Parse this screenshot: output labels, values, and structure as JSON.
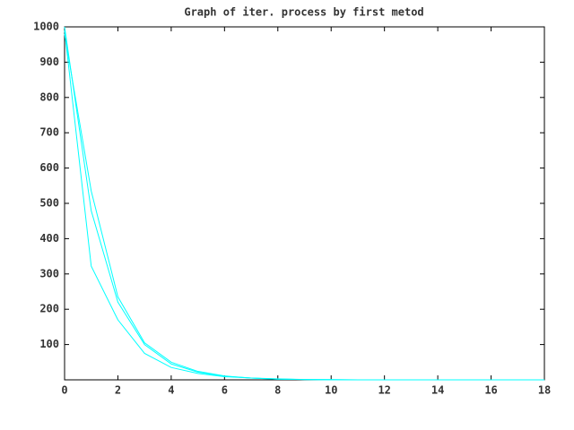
{
  "chart_data": {
    "type": "line",
    "title": "Graph of iter. process by first metod",
    "x": [
      0,
      1,
      2,
      3,
      4,
      5,
      6,
      7,
      8,
      9,
      10,
      11,
      12,
      13,
      14,
      15,
      16,
      17,
      18
    ],
    "series": [
      {
        "color": "#00ffff",
        "values": [
          990,
          322,
          170,
          75,
          35,
          18,
          9,
          5,
          3,
          1,
          1,
          0,
          0,
          0,
          0,
          0,
          0,
          0,
          0
        ]
      },
      {
        "color": "#00ffff",
        "values": [
          1000,
          479,
          220,
          100,
          45,
          22,
          10,
          5,
          2,
          1,
          0,
          0,
          0,
          0,
          0,
          0,
          0,
          0,
          0
        ]
      },
      {
        "color": "#00ffff",
        "values": [
          980,
          535,
          235,
          105,
          50,
          24,
          11,
          5,
          2,
          1,
          0,
          0,
          0,
          0,
          0,
          0,
          0,
          0,
          0
        ]
      }
    ],
    "xlim": [
      0,
      18
    ],
    "xticks": [
      0,
      2,
      4,
      6,
      8,
      10,
      12,
      14,
      16,
      18
    ],
    "ylim": [
      0,
      1000
    ],
    "yticks": [
      100,
      200,
      300,
      400,
      500,
      600,
      700,
      800,
      900,
      1000
    ]
  }
}
